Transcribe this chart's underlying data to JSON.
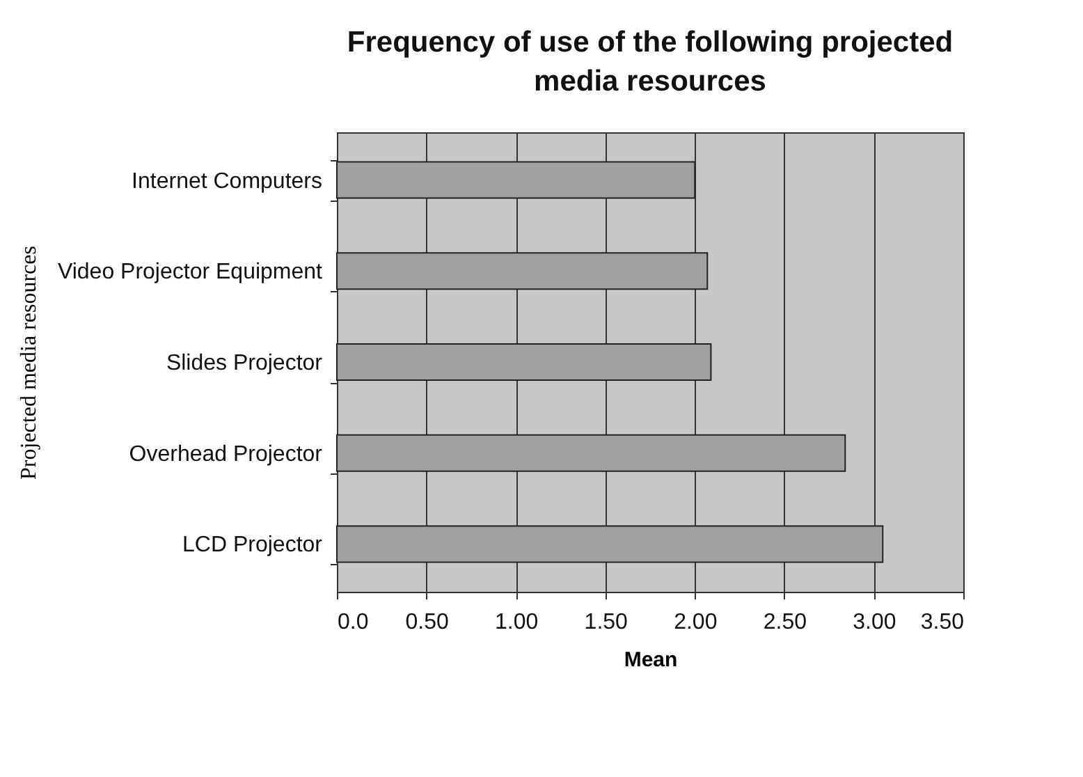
{
  "chart_data": {
    "type": "bar",
    "orientation": "horizontal",
    "title": "Frequency of use of the following projected media resources",
    "xlabel": "Mean",
    "ylabel": "Projected media resources",
    "categories": [
      "Internet Computers",
      "Video Projector Equipment",
      "Slides Projector",
      "Overhead Projector",
      "LCD Projector"
    ],
    "values": [
      2.0,
      2.07,
      2.09,
      2.84,
      3.05
    ],
    "color": "#a0a0a0",
    "xlim": [
      0,
      3.5
    ],
    "xticks": [
      {
        "value": 0,
        "label": "0.0"
      },
      {
        "value": 0.5,
        "label": "0.50"
      },
      {
        "value": 1,
        "label": "1.00"
      },
      {
        "value": 1.5,
        "label": "1.50"
      },
      {
        "value": 2,
        "label": "2.00"
      },
      {
        "value": 2.5,
        "label": "2.50"
      },
      {
        "value": 3,
        "label": "3.00"
      },
      {
        "value": 3.5,
        "label": "3.50"
      }
    ],
    "grid": "x"
  }
}
